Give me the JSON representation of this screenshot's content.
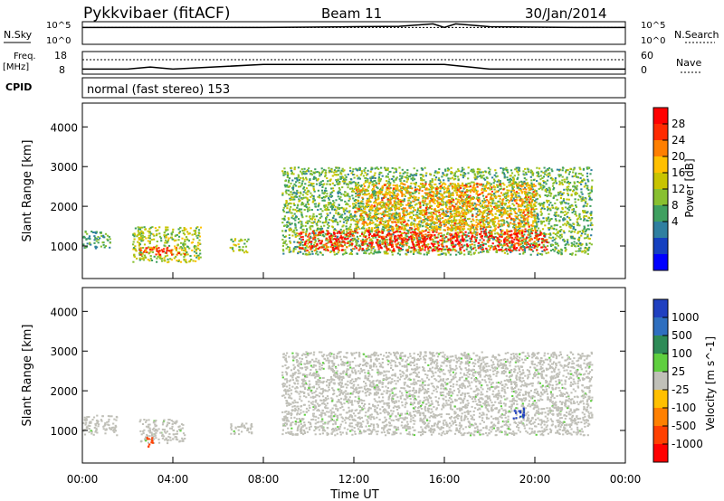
{
  "header": {
    "station": "Pykkvibaer (fitACF)",
    "beam": "Beam 11",
    "date": "30/Jan/2014"
  },
  "params": {
    "nsky_label": "N.Sky",
    "nsearch_label": "N.Search",
    "nsky_ticks": [
      "10^5",
      "10^0"
    ],
    "nsearch_ticks": [
      "10^5",
      "10^0"
    ],
    "freq_label": "Freq.",
    "freq_unit": "[MHz]",
    "freq_ticks": [
      "18",
      "8"
    ],
    "nave_label": "Nave",
    "nave_ticks": [
      "60",
      "0"
    ],
    "cpid_label": "CPID",
    "cpid_text": "normal (fast stereo) 153"
  },
  "panels": {
    "power": {
      "ylabel": "Slant Range [km]",
      "cbar_label": "Power [dB]",
      "cbar_ticks": [
        "28",
        "24",
        "20",
        "16",
        "12",
        "8",
        "4"
      ],
      "cbar_colors": [
        "#ff0000",
        "#ff2a00",
        "#ff7f00",
        "#ffc000",
        "#c8c400",
        "#88c030",
        "#3fa060",
        "#2f7fa0",
        "#1540c0",
        "#0000ff"
      ]
    },
    "velocity": {
      "ylabel": "Slant Range [km]",
      "cbar_label": "Velocity [m s^-1]",
      "cbar_ticks": [
        "1000",
        "500",
        "100",
        "25",
        "-25",
        "-100",
        "-500",
        "-1000"
      ],
      "cbar_colors": [
        "#2040c0",
        "#2f6fbf",
        "#2e8b57",
        "#5fcf3f",
        "#c0c0b8",
        "#ffc000",
        "#ff8000",
        "#ff4000",
        "#ff0000"
      ],
      "ground_scatter_color": "#c0c0b8"
    }
  },
  "chart_data": [
    {
      "type": "line",
      "title": "N.Sky / N.Search",
      "x": [
        "00:00",
        "02:00",
        "04:00",
        "06:00",
        "08:00",
        "10:00",
        "12:00",
        "14:00",
        "15:30",
        "16:00",
        "16:30",
        "18:00",
        "20:00",
        "22:00",
        "24:00"
      ],
      "series": [
        {
          "name": "N.Sky",
          "values": [
            4.0,
            4.0,
            4.0,
            4.0,
            4.0,
            4.1,
            4.2,
            4.3,
            4.9,
            4.0,
            4.9,
            4.2,
            4.1,
            4.0,
            4.0
          ]
        },
        {
          "name": "N.Search",
          "values": [
            4.0,
            4.0,
            4.0,
            4.0,
            4.0,
            4.0,
            4.0,
            4.0,
            4.0,
            4.0,
            4.0,
            4.0,
            4.0,
            4.0,
            4.0
          ]
        }
      ],
      "ylim": [
        0,
        5
      ]
    },
    {
      "type": "line",
      "title": "Freq. / Nave",
      "x": [
        "00:00",
        "02:00",
        "03:00",
        "04:00",
        "08:00",
        "12:00",
        "16:00",
        "18:00",
        "20:00",
        "24:00"
      ],
      "series": [
        {
          "name": "Freq.",
          "values": [
            10.0,
            10.0,
            11.0,
            10.0,
            12.2,
            12.2,
            12.2,
            10.0,
            10.0,
            10.0
          ]
        },
        {
          "name": "Nave",
          "values": [
            39,
            39,
            39,
            39,
            39,
            39,
            39,
            39,
            39,
            39
          ]
        }
      ],
      "ylim": [
        8,
        18
      ]
    },
    {
      "type": "heatmap",
      "title": "Power [dB]",
      "xlabel": "Time UT",
      "ylabel": "Slant Range [km]",
      "xticks": [
        "00:00",
        "04:00",
        "08:00",
        "12:00",
        "16:00",
        "20:00",
        "00:00"
      ],
      "yticks": [
        "1000",
        "2000",
        "3000",
        "4000"
      ],
      "xlim": [
        0,
        24
      ],
      "ylim": [
        180,
        4600
      ],
      "regions": [
        {
          "t0": 0.0,
          "t1": 1.2,
          "r0": 950,
          "r1": 1400,
          "value": 12
        },
        {
          "t0": 2.2,
          "t1": 5.2,
          "r0": 600,
          "r1": 1500,
          "value": 16
        },
        {
          "t0": 2.5,
          "t1": 4.5,
          "r0": 800,
          "r1": 1000,
          "value": 26
        },
        {
          "t0": 6.5,
          "t1": 7.3,
          "r0": 850,
          "r1": 1200,
          "value": 16
        },
        {
          "t0": 8.8,
          "t1": 22.5,
          "r0": 800,
          "r1": 3000,
          "value": 14
        },
        {
          "t0": 9.5,
          "t1": 20.5,
          "r0": 900,
          "r1": 1400,
          "value": 28
        },
        {
          "t0": 12.0,
          "t1": 20.0,
          "r0": 1400,
          "r1": 2600,
          "value": 22
        }
      ]
    },
    {
      "type": "heatmap",
      "title": "Velocity [m s^-1]",
      "xlabel": "Time UT",
      "ylabel": "Slant Range [km]",
      "xticks": [
        "00:00",
        "04:00",
        "08:00",
        "12:00",
        "16:00",
        "20:00",
        "00:00"
      ],
      "yticks": [
        "1000",
        "2000",
        "3000",
        "4000"
      ],
      "xlim": [
        0,
        24
      ],
      "ylim": [
        180,
        4600
      ],
      "regions": [
        {
          "t0": 0.0,
          "t1": 1.5,
          "r0": 900,
          "r1": 1400,
          "value": 0
        },
        {
          "t0": 2.5,
          "t1": 4.5,
          "r0": 700,
          "r1": 1300,
          "value": 0
        },
        {
          "t0": 6.5,
          "t1": 7.5,
          "r0": 900,
          "r1": 1200,
          "value": 0
        },
        {
          "t0": 8.8,
          "t1": 22.5,
          "r0": 900,
          "r1": 3000,
          "value": 0
        },
        {
          "t0": 19.0,
          "t1": 19.5,
          "r0": 1300,
          "r1": 1600,
          "value": 1000
        },
        {
          "t0": 2.8,
          "t1": 3.1,
          "r0": 600,
          "r1": 900,
          "value": -500
        }
      ]
    }
  ]
}
